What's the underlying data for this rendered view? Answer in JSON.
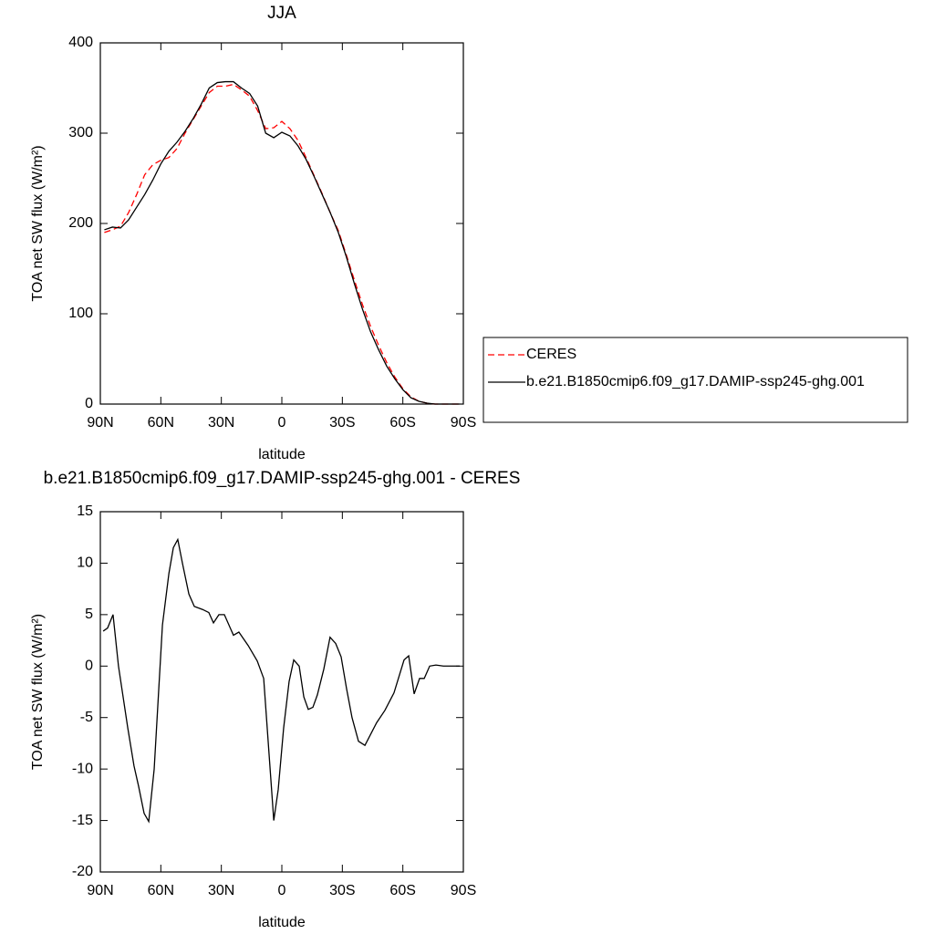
{
  "chart_data": [
    {
      "type": "line",
      "title": "JJA",
      "xlabel": "latitude",
      "ylabel": "TOA net SW flux (W/m²)",
      "x": [
        88,
        84,
        80,
        76,
        72,
        68,
        64,
        60,
        56,
        52,
        48,
        44,
        40,
        36,
        32,
        28,
        24,
        20,
        16,
        12,
        8,
        4,
        0,
        -4,
        -8,
        -12,
        -16,
        -20,
        -24,
        -28,
        -32,
        -36,
        -40,
        -44,
        -48,
        -52,
        -56,
        -60,
        -64,
        -68,
        -72,
        -76,
        -80,
        -84,
        -88
      ],
      "series": [
        {
          "name": "CERES",
          "color": "#ff0000",
          "dashed": true,
          "values": [
            190,
            193,
            197,
            212,
            232,
            254,
            265,
            270,
            273,
            283,
            300,
            315,
            330,
            345,
            352,
            352,
            354,
            348,
            341,
            325,
            305,
            306,
            313,
            305,
            292,
            273,
            253,
            233,
            212,
            192,
            165,
            137,
            110,
            86,
            65,
            46,
            30,
            17,
            8,
            3,
            1,
            0,
            0,
            0,
            0
          ]
        },
        {
          "name": "b.e21.B1850cmip6.f09_g17.DAMIP-ssp245-ghg.001",
          "color": "#000000",
          "dashed": false,
          "values": [
            193,
            196,
            195,
            204,
            218,
            232,
            248,
            266,
            280,
            290,
            302,
            316,
            332,
            350,
            356,
            357,
            357,
            350,
            344,
            330,
            300,
            295,
            301,
            297,
            286,
            271,
            252,
            232,
            212,
            190,
            163,
            133,
            105,
            80,
            60,
            42,
            28,
            16,
            7,
            3,
            1,
            0,
            0,
            0,
            0
          ]
        }
      ],
      "xlim": [
        90,
        -90
      ],
      "xticks": [
        {
          "value": 90,
          "label": "90N"
        },
        {
          "value": 60,
          "label": "60N"
        },
        {
          "value": 30,
          "label": "30N"
        },
        0,
        {
          "value": -30,
          "label": "30S"
        },
        {
          "value": -60,
          "label": "60S"
        },
        {
          "value": -90,
          "label": "90S"
        }
      ],
      "ylim": [
        0,
        400
      ],
      "yticks": [
        0,
        100,
        200,
        300,
        400
      ],
      "legend": "right"
    },
    {
      "type": "line",
      "title": "b.e21.B1850cmip6.f09_g17.DAMIP-ssp245-ghg.001 - CERES",
      "xlabel": "latitude",
      "ylabel": "TOA net SW flux (W/m²)",
      "x": [
        88.6,
        86.4,
        83.7,
        81,
        76.4,
        73.3,
        71,
        68.3,
        66,
        63.3,
        59.2,
        56,
        53.8,
        51.6,
        49.3,
        46.1,
        43.4,
        39.3,
        36.2,
        33.9,
        31.2,
        28.5,
        24,
        21.3,
        16.7,
        12.2,
        9,
        4,
        1.8,
        -0.9,
        -3.6,
        -5.9,
        -8.6,
        -10.9,
        -13.1,
        -15.4,
        -17.6,
        -20.8,
        -23.9,
        -26.7,
        -29.4,
        -32.1,
        -34.8,
        -38,
        -41.2,
        -47,
        -51.1,
        -55.6,
        -60.6,
        -62.9,
        -65.6,
        -68.3,
        -70.6,
        -73.3,
        -76.4,
        -80.1,
        -86.4,
        -88.2
      ],
      "values": [
        3.4,
        3.7,
        5,
        0,
        -6,
        -9.7,
        -11.7,
        -14.3,
        -15.1,
        -10,
        4,
        9,
        11.5,
        12.3,
        10,
        7,
        5.8,
        5.5,
        5.2,
        4.2,
        5,
        5,
        3,
        3.3,
        2,
        0.5,
        -1.2,
        -15,
        -12,
        -6,
        -1.5,
        0.6,
        0,
        -3,
        -4.2,
        -4,
        -2.8,
        -0.3,
        2.8,
        2.2,
        0.9,
        -2.2,
        -5,
        -7.3,
        -7.7,
        -5.5,
        -4.3,
        -2.6,
        0.6,
        1,
        -2.7,
        -1.2,
        -1.2,
        0,
        0.1,
        0,
        0,
        0
      ],
      "color": "#000000",
      "xlim": [
        90,
        -90
      ],
      "xticks": [
        {
          "value": 90,
          "label": "90N"
        },
        {
          "value": 60,
          "label": "60N"
        },
        {
          "value": 30,
          "label": "30N"
        },
        0,
        {
          "value": -30,
          "label": "30S"
        },
        {
          "value": -60,
          "label": "60S"
        },
        {
          "value": -90,
          "label": "90S"
        }
      ],
      "ylim": [
        -20,
        15
      ],
      "yticks": [
        -20,
        -15,
        -10,
        -5,
        0,
        5,
        10,
        15
      ]
    }
  ]
}
